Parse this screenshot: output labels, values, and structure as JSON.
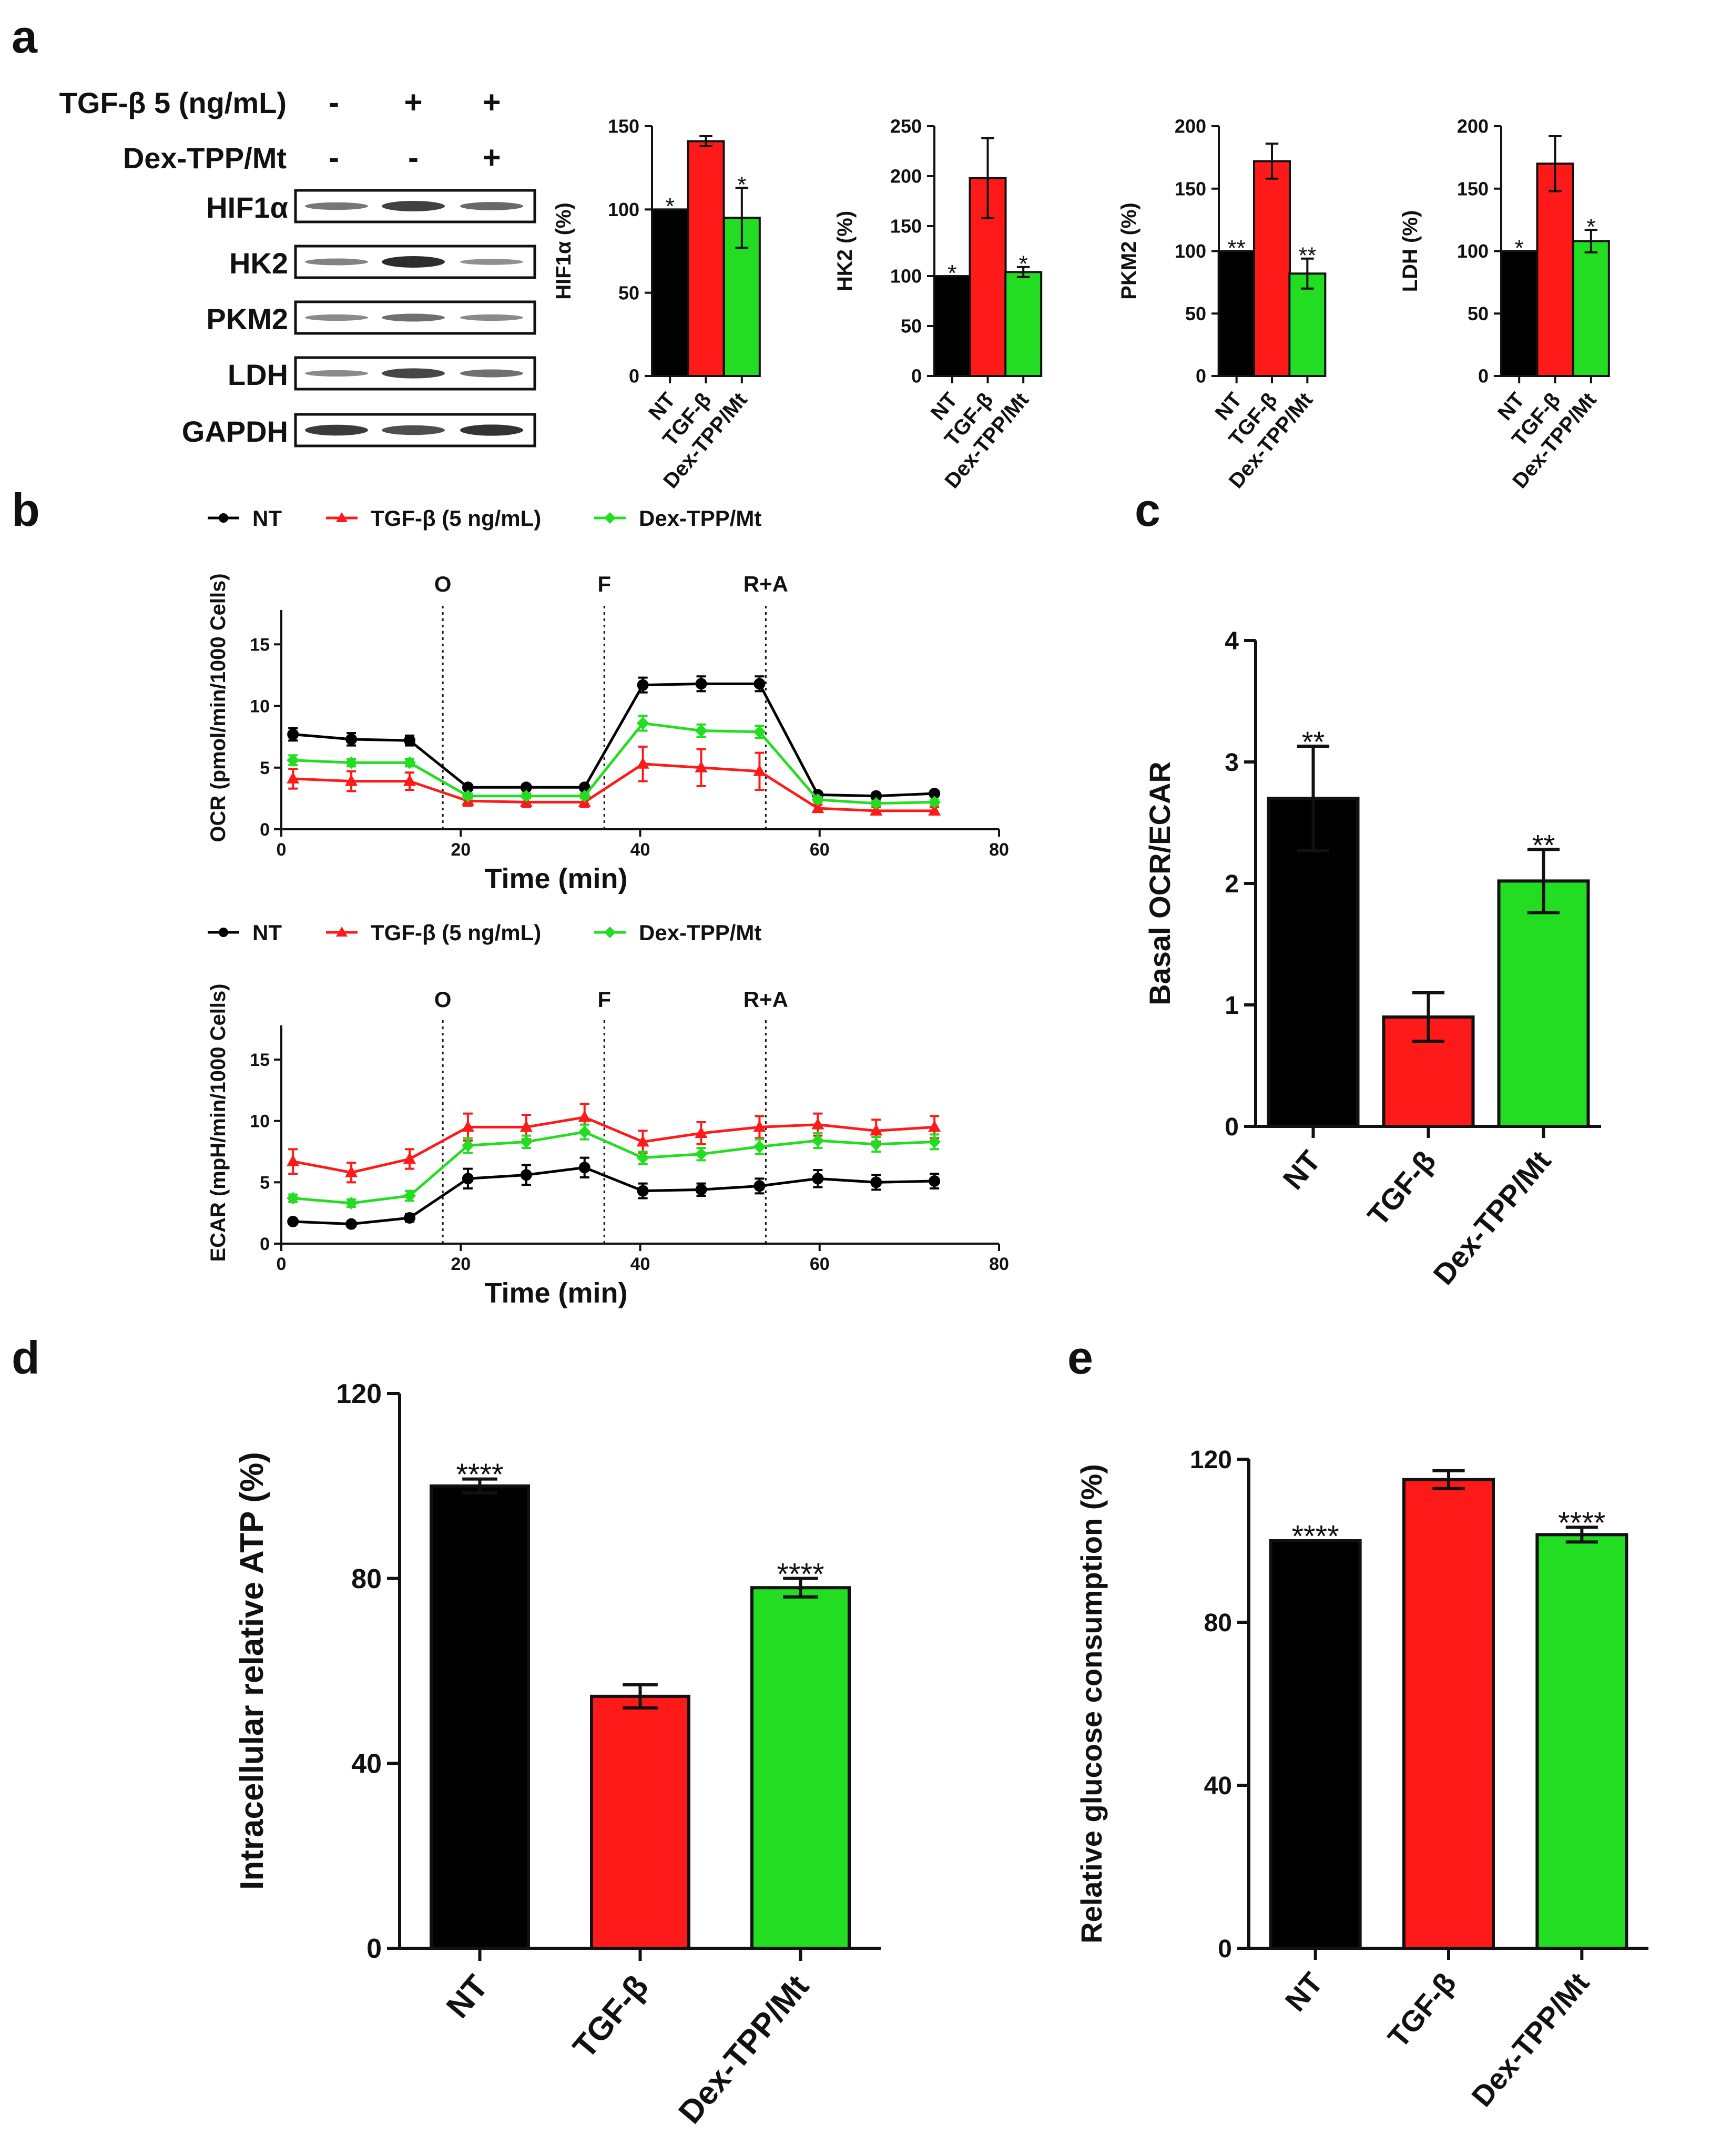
{
  "colors": {
    "nt": "#000000",
    "tgf": "#ff1a1a",
    "dex": "#22dd22",
    "axis": "#111111"
  },
  "panel_labels": {
    "a": "a",
    "b": "b",
    "c": "c",
    "d": "d",
    "e": "e"
  },
  "western": {
    "treat_label_1": "TGF-β 5 (ng/mL)",
    "treat_label_2": "Dex-TPP/Mt",
    "treat_signs_1": [
      "-",
      "+",
      "+"
    ],
    "treat_signs_2": [
      "-",
      "-",
      "+"
    ],
    "bands": [
      "HIF1α",
      "HK2",
      "PKM2",
      "LDH",
      "GAPDH"
    ]
  },
  "chart_data": [
    {
      "id": "a1",
      "type": "bar",
      "categories": [
        "NT",
        "TGF-β",
        "Dex-TPP/Mt"
      ],
      "values": [
        100,
        141,
        95
      ],
      "errors": [
        0,
        3,
        18
      ],
      "sig": [
        "*",
        "",
        "*"
      ],
      "ylabel": "HIF1α (%)",
      "ylim": [
        0,
        150
      ],
      "yticks": [
        0,
        50,
        100,
        150
      ]
    },
    {
      "id": "a2",
      "type": "bar",
      "categories": [
        "NT",
        "TGF-β",
        "Dex-TPP/Mt"
      ],
      "values": [
        100,
        198,
        104
      ],
      "errors": [
        0,
        40,
        5
      ],
      "sig": [
        "*",
        "",
        "*"
      ],
      "ylabel": "HK2 (%)",
      "ylim": [
        0,
        250
      ],
      "yticks": [
        0,
        50,
        100,
        150,
        200,
        250
      ]
    },
    {
      "id": "a3",
      "type": "bar",
      "categories": [
        "NT",
        "TGF-β",
        "Dex-TPP/Mt"
      ],
      "values": [
        100,
        172,
        82
      ],
      "errors": [
        0,
        14,
        12
      ],
      "sig": [
        "**",
        "",
        "**"
      ],
      "ylabel": "PKM2 (%)",
      "ylim": [
        0,
        200
      ],
      "yticks": [
        0,
        50,
        100,
        150,
        200
      ]
    },
    {
      "id": "a4",
      "type": "bar",
      "categories": [
        "NT",
        "TGF-β",
        "Dex-TPP/Mt"
      ],
      "values": [
        100,
        170,
        108
      ],
      "errors": [
        0,
        22,
        9
      ],
      "sig": [
        "*",
        "",
        "*"
      ],
      "ylabel": "LDH (%)",
      "ylim": [
        0,
        200
      ],
      "yticks": [
        0,
        50,
        100,
        150,
        200
      ]
    },
    {
      "id": "b1",
      "type": "line",
      "legend": [
        "NT",
        "TGF-β (5 ng/mL)",
        "Dex-TPP/Mt"
      ],
      "x": [
        1.3,
        7.8,
        14.3,
        20.8,
        27.3,
        33.8,
        40.3,
        46.8,
        53.3,
        59.8,
        66.3,
        72.8
      ],
      "series": [
        {
          "name": "NT",
          "values": [
            7.7,
            7.3,
            7.2,
            3.4,
            3.4,
            3.4,
            11.7,
            11.8,
            11.8,
            2.8,
            2.7,
            2.9
          ],
          "errors": [
            0.5,
            0.5,
            0.4,
            0.2,
            0.2,
            0.2,
            0.6,
            0.6,
            0.6,
            0.2,
            0.2,
            0.2
          ]
        },
        {
          "name": "TGF-β (5 ng/mL)",
          "values": [
            4.1,
            3.9,
            3.9,
            2.3,
            2.2,
            2.2,
            5.3,
            5.0,
            4.7,
            1.7,
            1.5,
            1.5
          ],
          "errors": [
            0.8,
            0.8,
            0.7,
            0.4,
            0.4,
            0.4,
            1.4,
            1.5,
            1.5,
            0.3,
            0.3,
            0.3
          ]
        },
        {
          "name": "Dex-TPP/Mt",
          "values": [
            5.6,
            5.4,
            5.4,
            2.7,
            2.7,
            2.7,
            8.6,
            8.0,
            7.9,
            2.4,
            2.1,
            2.2
          ],
          "errors": [
            0.4,
            0.3,
            0.3,
            0.2,
            0.2,
            0.2,
            0.6,
            0.5,
            0.5,
            0.2,
            0.2,
            0.2
          ]
        }
      ],
      "xlabel": "Time (min)",
      "ylabel": "OCR (pmol/min/1000 Cells)",
      "xlim": [
        0,
        80
      ],
      "ylim": [
        0,
        18
      ],
      "xticks": [
        0,
        20,
        40,
        60,
        80
      ],
      "yticks": [
        0,
        5,
        10,
        15
      ],
      "markers": [
        {
          "x": 18,
          "label": "O"
        },
        {
          "x": 36,
          "label": "F"
        },
        {
          "x": 54,
          "label": "R+A"
        }
      ]
    },
    {
      "id": "b2",
      "type": "line",
      "legend": [
        "NT",
        "TGF-β (5 ng/mL)",
        "Dex-TPP/Mt"
      ],
      "x": [
        1.3,
        7.8,
        14.3,
        20.8,
        27.3,
        33.8,
        40.3,
        46.8,
        53.3,
        59.8,
        66.3,
        72.8
      ],
      "series": [
        {
          "name": "NT",
          "values": [
            1.8,
            1.6,
            2.1,
            5.3,
            5.6,
            6.2,
            4.3,
            4.4,
            4.7,
            5.3,
            5.0,
            5.1
          ],
          "errors": [
            0.2,
            0.2,
            0.3,
            0.8,
            0.8,
            0.8,
            0.6,
            0.5,
            0.6,
            0.7,
            0.6,
            0.6
          ]
        },
        {
          "name": "TGF-β (5 ng/mL)",
          "values": [
            6.7,
            5.8,
            6.9,
            9.5,
            9.5,
            10.3,
            8.3,
            9.0,
            9.5,
            9.7,
            9.2,
            9.5
          ],
          "errors": [
            1.0,
            0.8,
            0.8,
            1.1,
            1.0,
            1.1,
            0.9,
            0.9,
            0.9,
            0.9,
            0.9,
            0.9
          ]
        },
        {
          "name": "Dex-TPP/Mt",
          "values": [
            3.7,
            3.3,
            3.9,
            8.0,
            8.3,
            9.1,
            7.0,
            7.3,
            7.9,
            8.4,
            8.1,
            8.3
          ],
          "errors": [
            0.3,
            0.3,
            0.4,
            0.6,
            0.5,
            0.6,
            0.5,
            0.5,
            0.6,
            0.6,
            0.6,
            0.6
          ]
        }
      ],
      "xlabel": "Time (min)",
      "ylabel": "ECAR (mpH/min/1000 Cells)",
      "xlim": [
        0,
        80
      ],
      "ylim": [
        0,
        18
      ],
      "xticks": [
        0,
        20,
        40,
        60,
        80
      ],
      "yticks": [
        0,
        5,
        10,
        15
      ],
      "markers": [
        {
          "x": 18,
          "label": "O"
        },
        {
          "x": 36,
          "label": "F"
        },
        {
          "x": 54,
          "label": "R+A"
        }
      ]
    },
    {
      "id": "c",
      "type": "bar",
      "categories": [
        "NT",
        "TGF-β",
        "Dex-TPP/Mt"
      ],
      "values": [
        2.7,
        0.9,
        2.02
      ],
      "errors": [
        0.43,
        0.2,
        0.26
      ],
      "sig": [
        "**",
        "",
        "**"
      ],
      "ylabel": "Basal OCR/ECAR",
      "ylim": [
        0,
        4
      ],
      "yticks": [
        0,
        1,
        2,
        3,
        4
      ]
    },
    {
      "id": "d",
      "type": "bar",
      "categories": [
        "NT",
        "TGF-β",
        "Dex-TPP/Mt"
      ],
      "values": [
        100,
        54.5,
        78
      ],
      "errors": [
        1.5,
        2.5,
        2
      ],
      "sig": [
        "****",
        "",
        "****"
      ],
      "ylabel": "Intracellular relative ATP (%)",
      "ylim": [
        0,
        120
      ],
      "yticks": [
        0,
        40,
        80,
        120
      ]
    },
    {
      "id": "e",
      "type": "bar",
      "categories": [
        "NT",
        "TGF-β",
        "Dex-TPP/Mt"
      ],
      "values": [
        100,
        115,
        101.5
      ],
      "errors": [
        0,
        2.2,
        1.8
      ],
      "sig": [
        "****",
        "",
        "****"
      ],
      "ylabel": "Relative glucose consumption (%)",
      "ylim": [
        0,
        120
      ],
      "yticks": [
        0,
        40,
        80,
        120
      ]
    }
  ]
}
